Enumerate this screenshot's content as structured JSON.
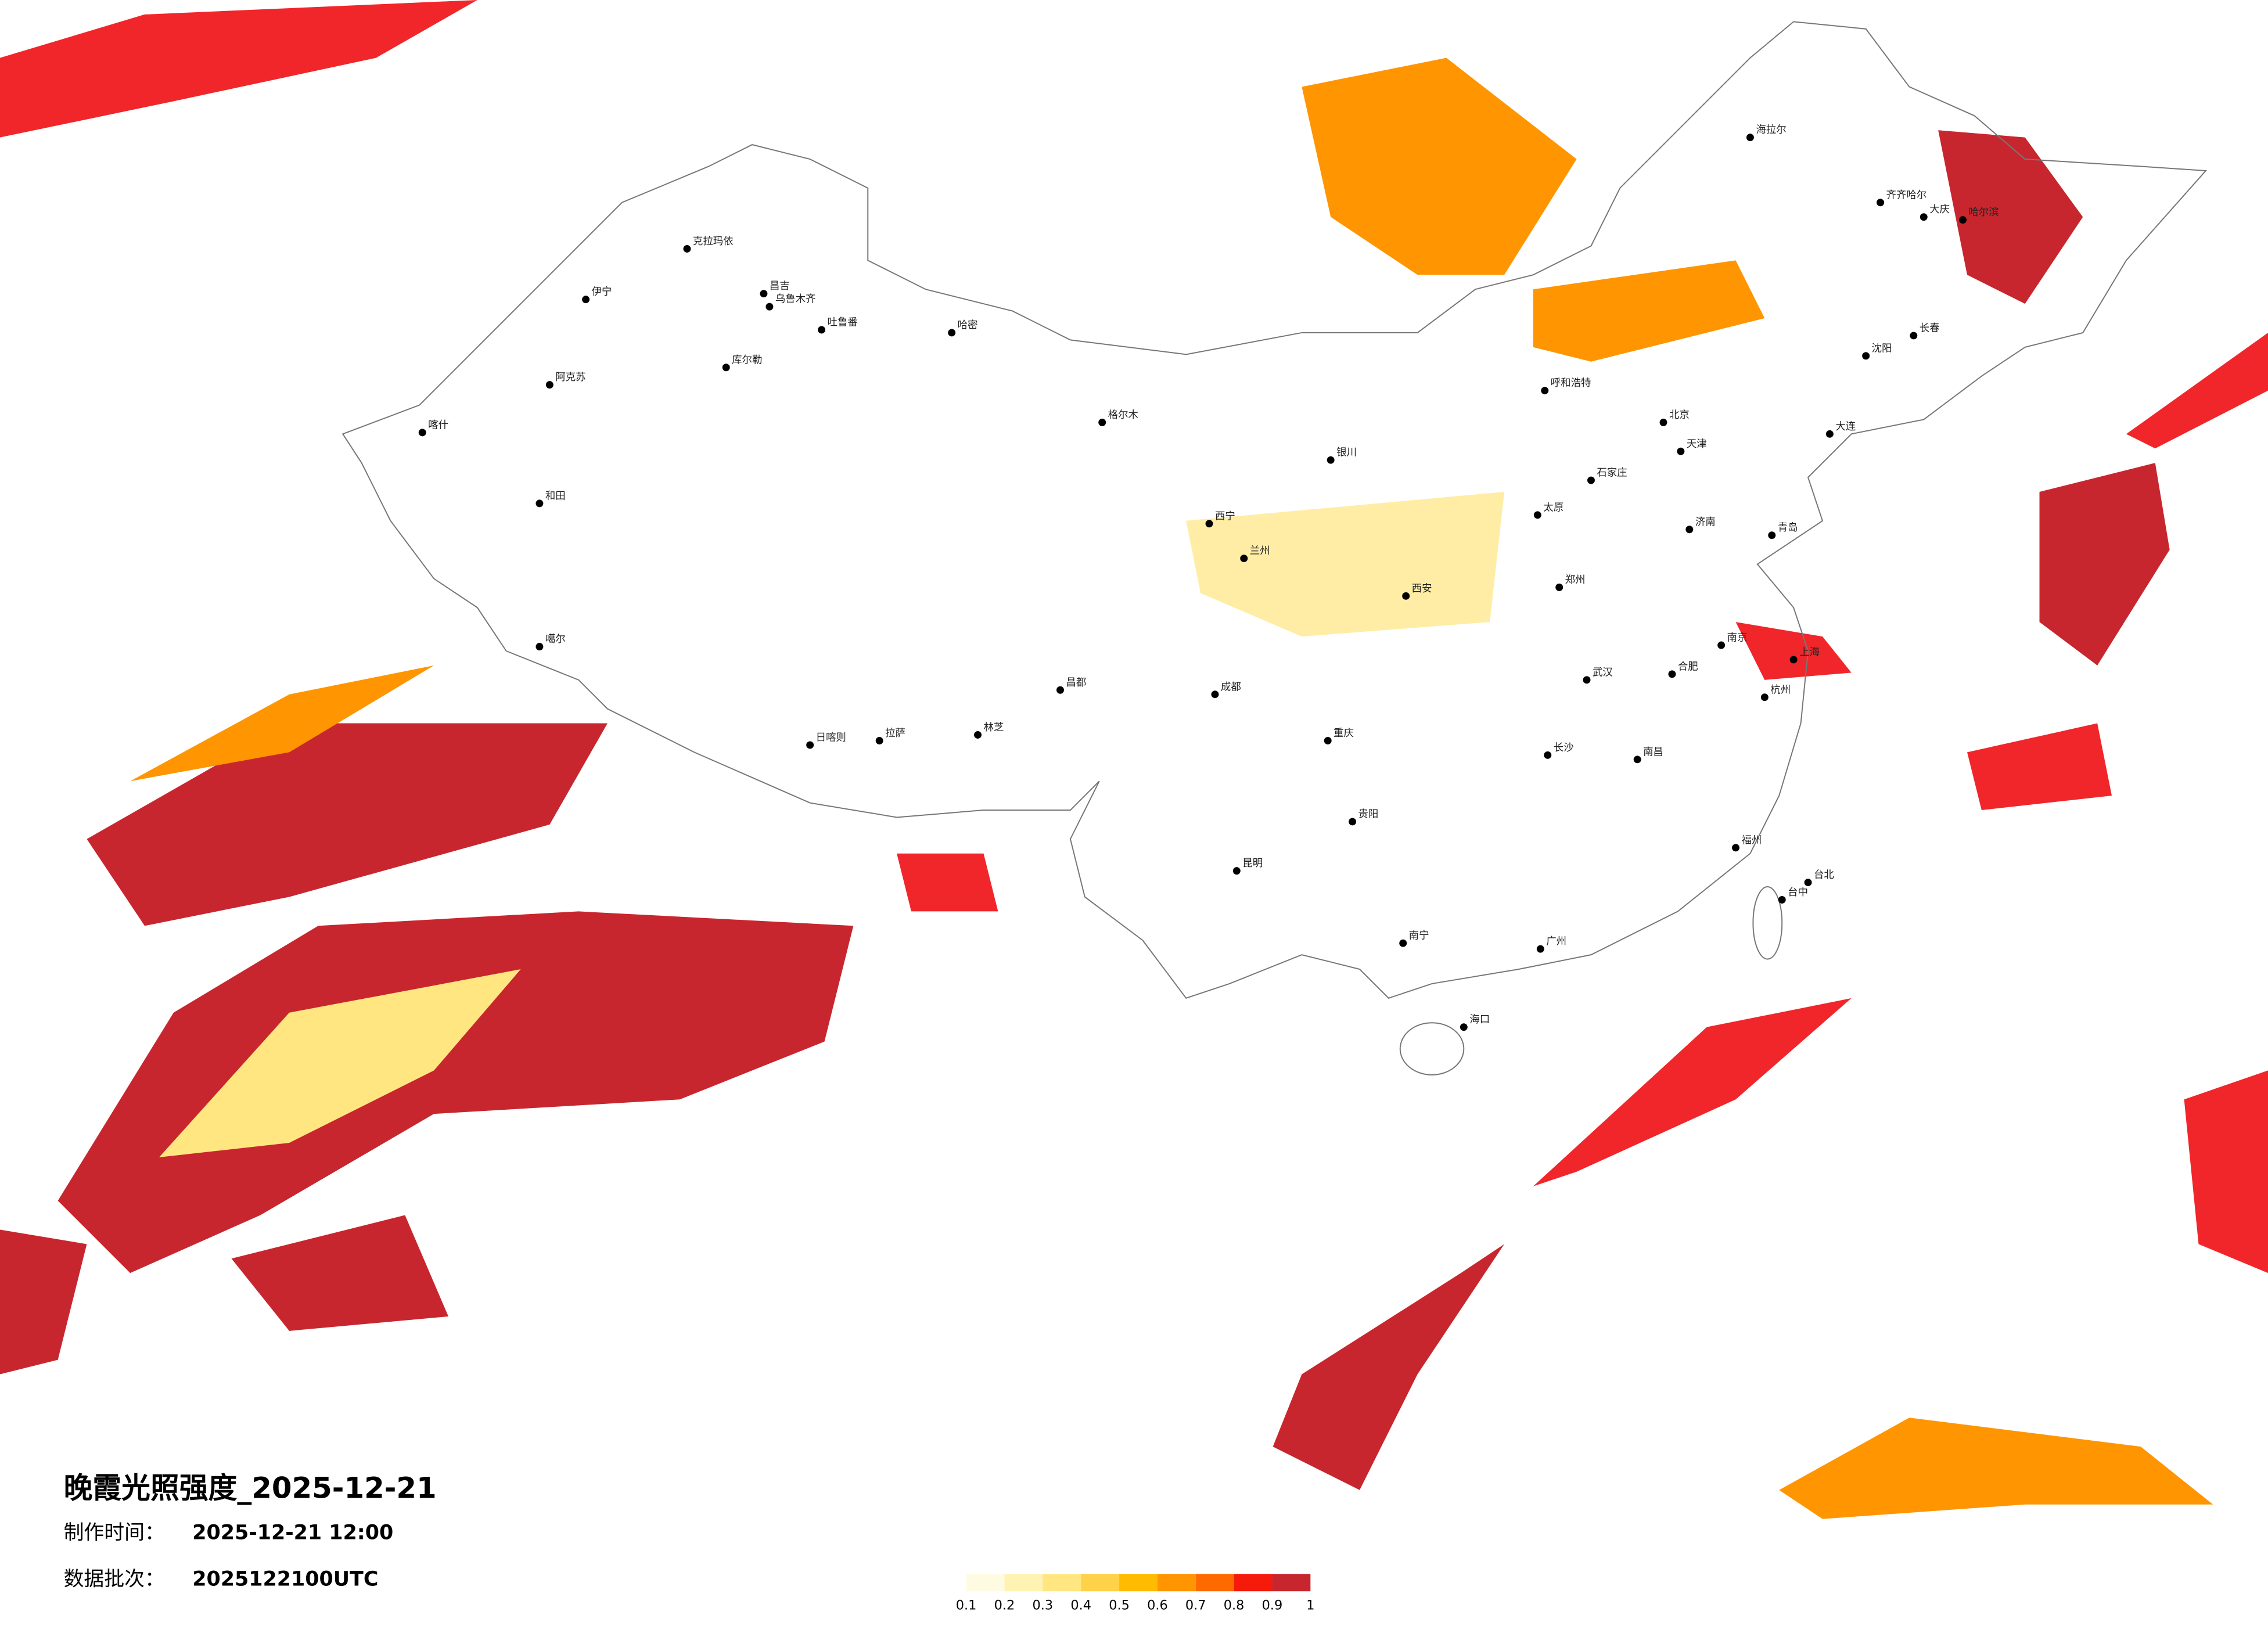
{
  "title": "晚霞光照强度_2025-12-21",
  "production": {
    "label": "制作时间：",
    "value": "2025-12-21 12:00"
  },
  "batch": {
    "label": "数据批次：",
    "value": "2025122100UTC"
  },
  "colorbar": {
    "ticks": [
      0.1,
      0.2,
      0.3,
      0.4,
      0.5,
      0.6,
      0.7,
      0.8,
      0.9,
      1
    ],
    "colors": [
      "#fffbe3",
      "#fff3b3",
      "#ffe680",
      "#ffd24a",
      "#ffbb00",
      "#ff9500",
      "#ff6a00",
      "#f51a0a",
      "#c8262e"
    ]
  },
  "cities": [
    "克拉玛依",
    "伊宁",
    "昌吉",
    "乌鲁木齐",
    "吐鲁番",
    "哈密",
    "库尔勒",
    "阿克苏",
    "喀什",
    "和田",
    "噶尔",
    "日喀则",
    "拉萨",
    "林芝",
    "昌都",
    "格尔木",
    "西宁",
    "兰州",
    "银川",
    "呼和浩特",
    "北京",
    "天津",
    "石家庄",
    "太原",
    "济南",
    "郑州",
    "西安",
    "成都",
    "重庆",
    "武汉",
    "长沙",
    "南昌",
    "杭州",
    "上海",
    "南京",
    "合肥",
    "福州",
    "广州",
    "南宁",
    "海口",
    "昆明",
    "贵阳",
    "沈阳",
    "长春",
    "哈尔滨",
    "大庆",
    "齐齐哈尔",
    "海拉尔",
    "台北",
    "台中",
    "大连",
    "青岛"
  ]
}
